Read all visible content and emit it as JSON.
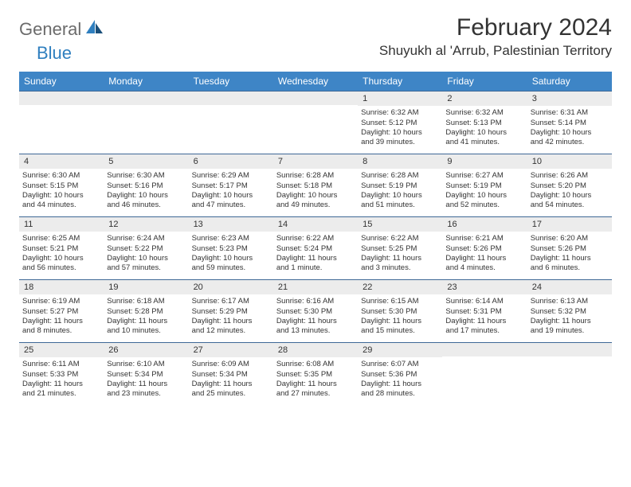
{
  "brand": {
    "part1": "General",
    "part2": "Blue"
  },
  "title": "February 2024",
  "location": "Shuyukh al 'Arrub, Palestinian Territory",
  "colors": {
    "header_bg": "#3e85c6",
    "header_text": "#ffffff",
    "band_bg": "#ececec",
    "rule": "#3e6896",
    "text": "#333333",
    "logo_gray": "#6b6b6b",
    "logo_blue": "#2f7fbf"
  },
  "weekdays": [
    "Sunday",
    "Monday",
    "Tuesday",
    "Wednesday",
    "Thursday",
    "Friday",
    "Saturday"
  ],
  "weeks": [
    [
      null,
      null,
      null,
      null,
      {
        "n": "1",
        "sr": "Sunrise: 6:32 AM",
        "ss": "Sunset: 5:12 PM",
        "d1": "Daylight: 10 hours",
        "d2": "and 39 minutes."
      },
      {
        "n": "2",
        "sr": "Sunrise: 6:32 AM",
        "ss": "Sunset: 5:13 PM",
        "d1": "Daylight: 10 hours",
        "d2": "and 41 minutes."
      },
      {
        "n": "3",
        "sr": "Sunrise: 6:31 AM",
        "ss": "Sunset: 5:14 PM",
        "d1": "Daylight: 10 hours",
        "d2": "and 42 minutes."
      }
    ],
    [
      {
        "n": "4",
        "sr": "Sunrise: 6:30 AM",
        "ss": "Sunset: 5:15 PM",
        "d1": "Daylight: 10 hours",
        "d2": "and 44 minutes."
      },
      {
        "n": "5",
        "sr": "Sunrise: 6:30 AM",
        "ss": "Sunset: 5:16 PM",
        "d1": "Daylight: 10 hours",
        "d2": "and 46 minutes."
      },
      {
        "n": "6",
        "sr": "Sunrise: 6:29 AM",
        "ss": "Sunset: 5:17 PM",
        "d1": "Daylight: 10 hours",
        "d2": "and 47 minutes."
      },
      {
        "n": "7",
        "sr": "Sunrise: 6:28 AM",
        "ss": "Sunset: 5:18 PM",
        "d1": "Daylight: 10 hours",
        "d2": "and 49 minutes."
      },
      {
        "n": "8",
        "sr": "Sunrise: 6:28 AM",
        "ss": "Sunset: 5:19 PM",
        "d1": "Daylight: 10 hours",
        "d2": "and 51 minutes."
      },
      {
        "n": "9",
        "sr": "Sunrise: 6:27 AM",
        "ss": "Sunset: 5:19 PM",
        "d1": "Daylight: 10 hours",
        "d2": "and 52 minutes."
      },
      {
        "n": "10",
        "sr": "Sunrise: 6:26 AM",
        "ss": "Sunset: 5:20 PM",
        "d1": "Daylight: 10 hours",
        "d2": "and 54 minutes."
      }
    ],
    [
      {
        "n": "11",
        "sr": "Sunrise: 6:25 AM",
        "ss": "Sunset: 5:21 PM",
        "d1": "Daylight: 10 hours",
        "d2": "and 56 minutes."
      },
      {
        "n": "12",
        "sr": "Sunrise: 6:24 AM",
        "ss": "Sunset: 5:22 PM",
        "d1": "Daylight: 10 hours",
        "d2": "and 57 minutes."
      },
      {
        "n": "13",
        "sr": "Sunrise: 6:23 AM",
        "ss": "Sunset: 5:23 PM",
        "d1": "Daylight: 10 hours",
        "d2": "and 59 minutes."
      },
      {
        "n": "14",
        "sr": "Sunrise: 6:22 AM",
        "ss": "Sunset: 5:24 PM",
        "d1": "Daylight: 11 hours",
        "d2": "and 1 minute."
      },
      {
        "n": "15",
        "sr": "Sunrise: 6:22 AM",
        "ss": "Sunset: 5:25 PM",
        "d1": "Daylight: 11 hours",
        "d2": "and 3 minutes."
      },
      {
        "n": "16",
        "sr": "Sunrise: 6:21 AM",
        "ss": "Sunset: 5:26 PM",
        "d1": "Daylight: 11 hours",
        "d2": "and 4 minutes."
      },
      {
        "n": "17",
        "sr": "Sunrise: 6:20 AM",
        "ss": "Sunset: 5:26 PM",
        "d1": "Daylight: 11 hours",
        "d2": "and 6 minutes."
      }
    ],
    [
      {
        "n": "18",
        "sr": "Sunrise: 6:19 AM",
        "ss": "Sunset: 5:27 PM",
        "d1": "Daylight: 11 hours",
        "d2": "and 8 minutes."
      },
      {
        "n": "19",
        "sr": "Sunrise: 6:18 AM",
        "ss": "Sunset: 5:28 PM",
        "d1": "Daylight: 11 hours",
        "d2": "and 10 minutes."
      },
      {
        "n": "20",
        "sr": "Sunrise: 6:17 AM",
        "ss": "Sunset: 5:29 PM",
        "d1": "Daylight: 11 hours",
        "d2": "and 12 minutes."
      },
      {
        "n": "21",
        "sr": "Sunrise: 6:16 AM",
        "ss": "Sunset: 5:30 PM",
        "d1": "Daylight: 11 hours",
        "d2": "and 13 minutes."
      },
      {
        "n": "22",
        "sr": "Sunrise: 6:15 AM",
        "ss": "Sunset: 5:30 PM",
        "d1": "Daylight: 11 hours",
        "d2": "and 15 minutes."
      },
      {
        "n": "23",
        "sr": "Sunrise: 6:14 AM",
        "ss": "Sunset: 5:31 PM",
        "d1": "Daylight: 11 hours",
        "d2": "and 17 minutes."
      },
      {
        "n": "24",
        "sr": "Sunrise: 6:13 AM",
        "ss": "Sunset: 5:32 PM",
        "d1": "Daylight: 11 hours",
        "d2": "and 19 minutes."
      }
    ],
    [
      {
        "n": "25",
        "sr": "Sunrise: 6:11 AM",
        "ss": "Sunset: 5:33 PM",
        "d1": "Daylight: 11 hours",
        "d2": "and 21 minutes."
      },
      {
        "n": "26",
        "sr": "Sunrise: 6:10 AM",
        "ss": "Sunset: 5:34 PM",
        "d1": "Daylight: 11 hours",
        "d2": "and 23 minutes."
      },
      {
        "n": "27",
        "sr": "Sunrise: 6:09 AM",
        "ss": "Sunset: 5:34 PM",
        "d1": "Daylight: 11 hours",
        "d2": "and 25 minutes."
      },
      {
        "n": "28",
        "sr": "Sunrise: 6:08 AM",
        "ss": "Sunset: 5:35 PM",
        "d1": "Daylight: 11 hours",
        "d2": "and 27 minutes."
      },
      {
        "n": "29",
        "sr": "Sunrise: 6:07 AM",
        "ss": "Sunset: 5:36 PM",
        "d1": "Daylight: 11 hours",
        "d2": "and 28 minutes."
      },
      null,
      null
    ]
  ]
}
